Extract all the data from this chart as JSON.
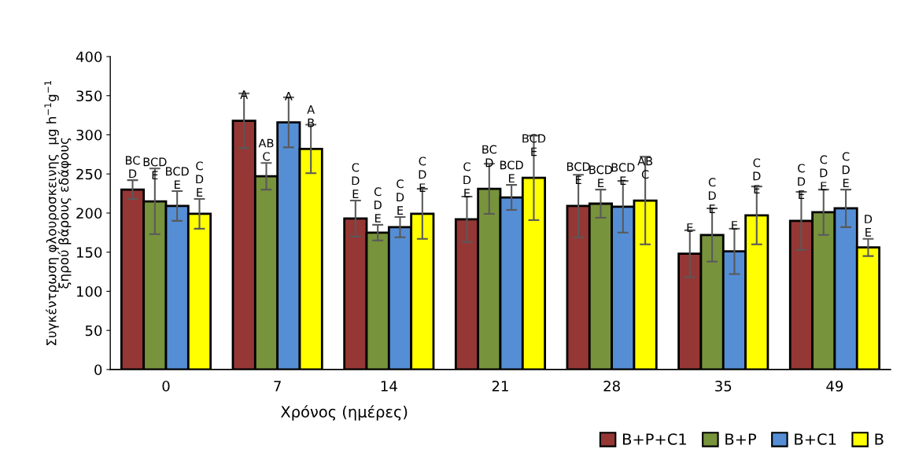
{
  "chart_data": {
    "type": "bar",
    "xlabel": "Χρόνος (ημέρες)",
    "ylabel": "Συγκέντρωση φλουροσκεινης  μg h$^{−1}$g$^{−1}$\nξηρού βάρους εδάφους",
    "categories": [
      "0",
      "7",
      "14",
      "21",
      "28",
      "35",
      "49"
    ],
    "series": [
      {
        "name": "B+P+C1",
        "color": "#953735",
        "values": [
          230,
          318,
          193,
          192,
          209,
          148,
          190
        ],
        "errors": [
          12,
          35,
          23,
          29,
          40,
          30,
          37
        ],
        "value_labels": [
          "BC\nD",
          "A",
          "C\nD\nE",
          "C\nD\nE",
          "BCD\nE",
          "E",
          "C\nD\nE"
        ]
      },
      {
        "name": "B+P",
        "color": "#77933c",
        "values": [
          215,
          247,
          175,
          231,
          212,
          172,
          201
        ],
        "errors": [
          42,
          17,
          10,
          32,
          18,
          34,
          29
        ],
        "value_labels": [
          "BCD\nE",
          "AB\nC",
          "C\nD\nE",
          "BC\nD",
          "BCD\nE",
          "C\nD\nE",
          "C\nD\nE"
        ]
      },
      {
        "name": "B+C1",
        "color": "#558ed5",
        "values": [
          209,
          316,
          182,
          220,
          208,
          151,
          206
        ],
        "errors": [
          19,
          32,
          13,
          16,
          33,
          29,
          24
        ],
        "value_labels": [
          "BCD\nE",
          "A",
          "C\nD\nE",
          "BCD\nE",
          "BCD\nE",
          "E",
          "C\nD\nE"
        ]
      },
      {
        "name": "B",
        "color": "#ffff00",
        "values": [
          199,
          282,
          199,
          245,
          216,
          197,
          156
        ],
        "errors": [
          19,
          31,
          32,
          54,
          56,
          37,
          11
        ],
        "value_labels": [
          "C\nD\nE",
          "A\nB",
          "C\nD\nE",
          "BCD\nE",
          "AB\nC",
          "C\nD\nE",
          "D\nE"
        ]
      }
    ],
    "ylim": [
      0,
      400
    ],
    "yticks": [
      0,
      50,
      100,
      150,
      200,
      250,
      300,
      350,
      400
    ],
    "legend": "bottom right",
    "grid": false
  }
}
